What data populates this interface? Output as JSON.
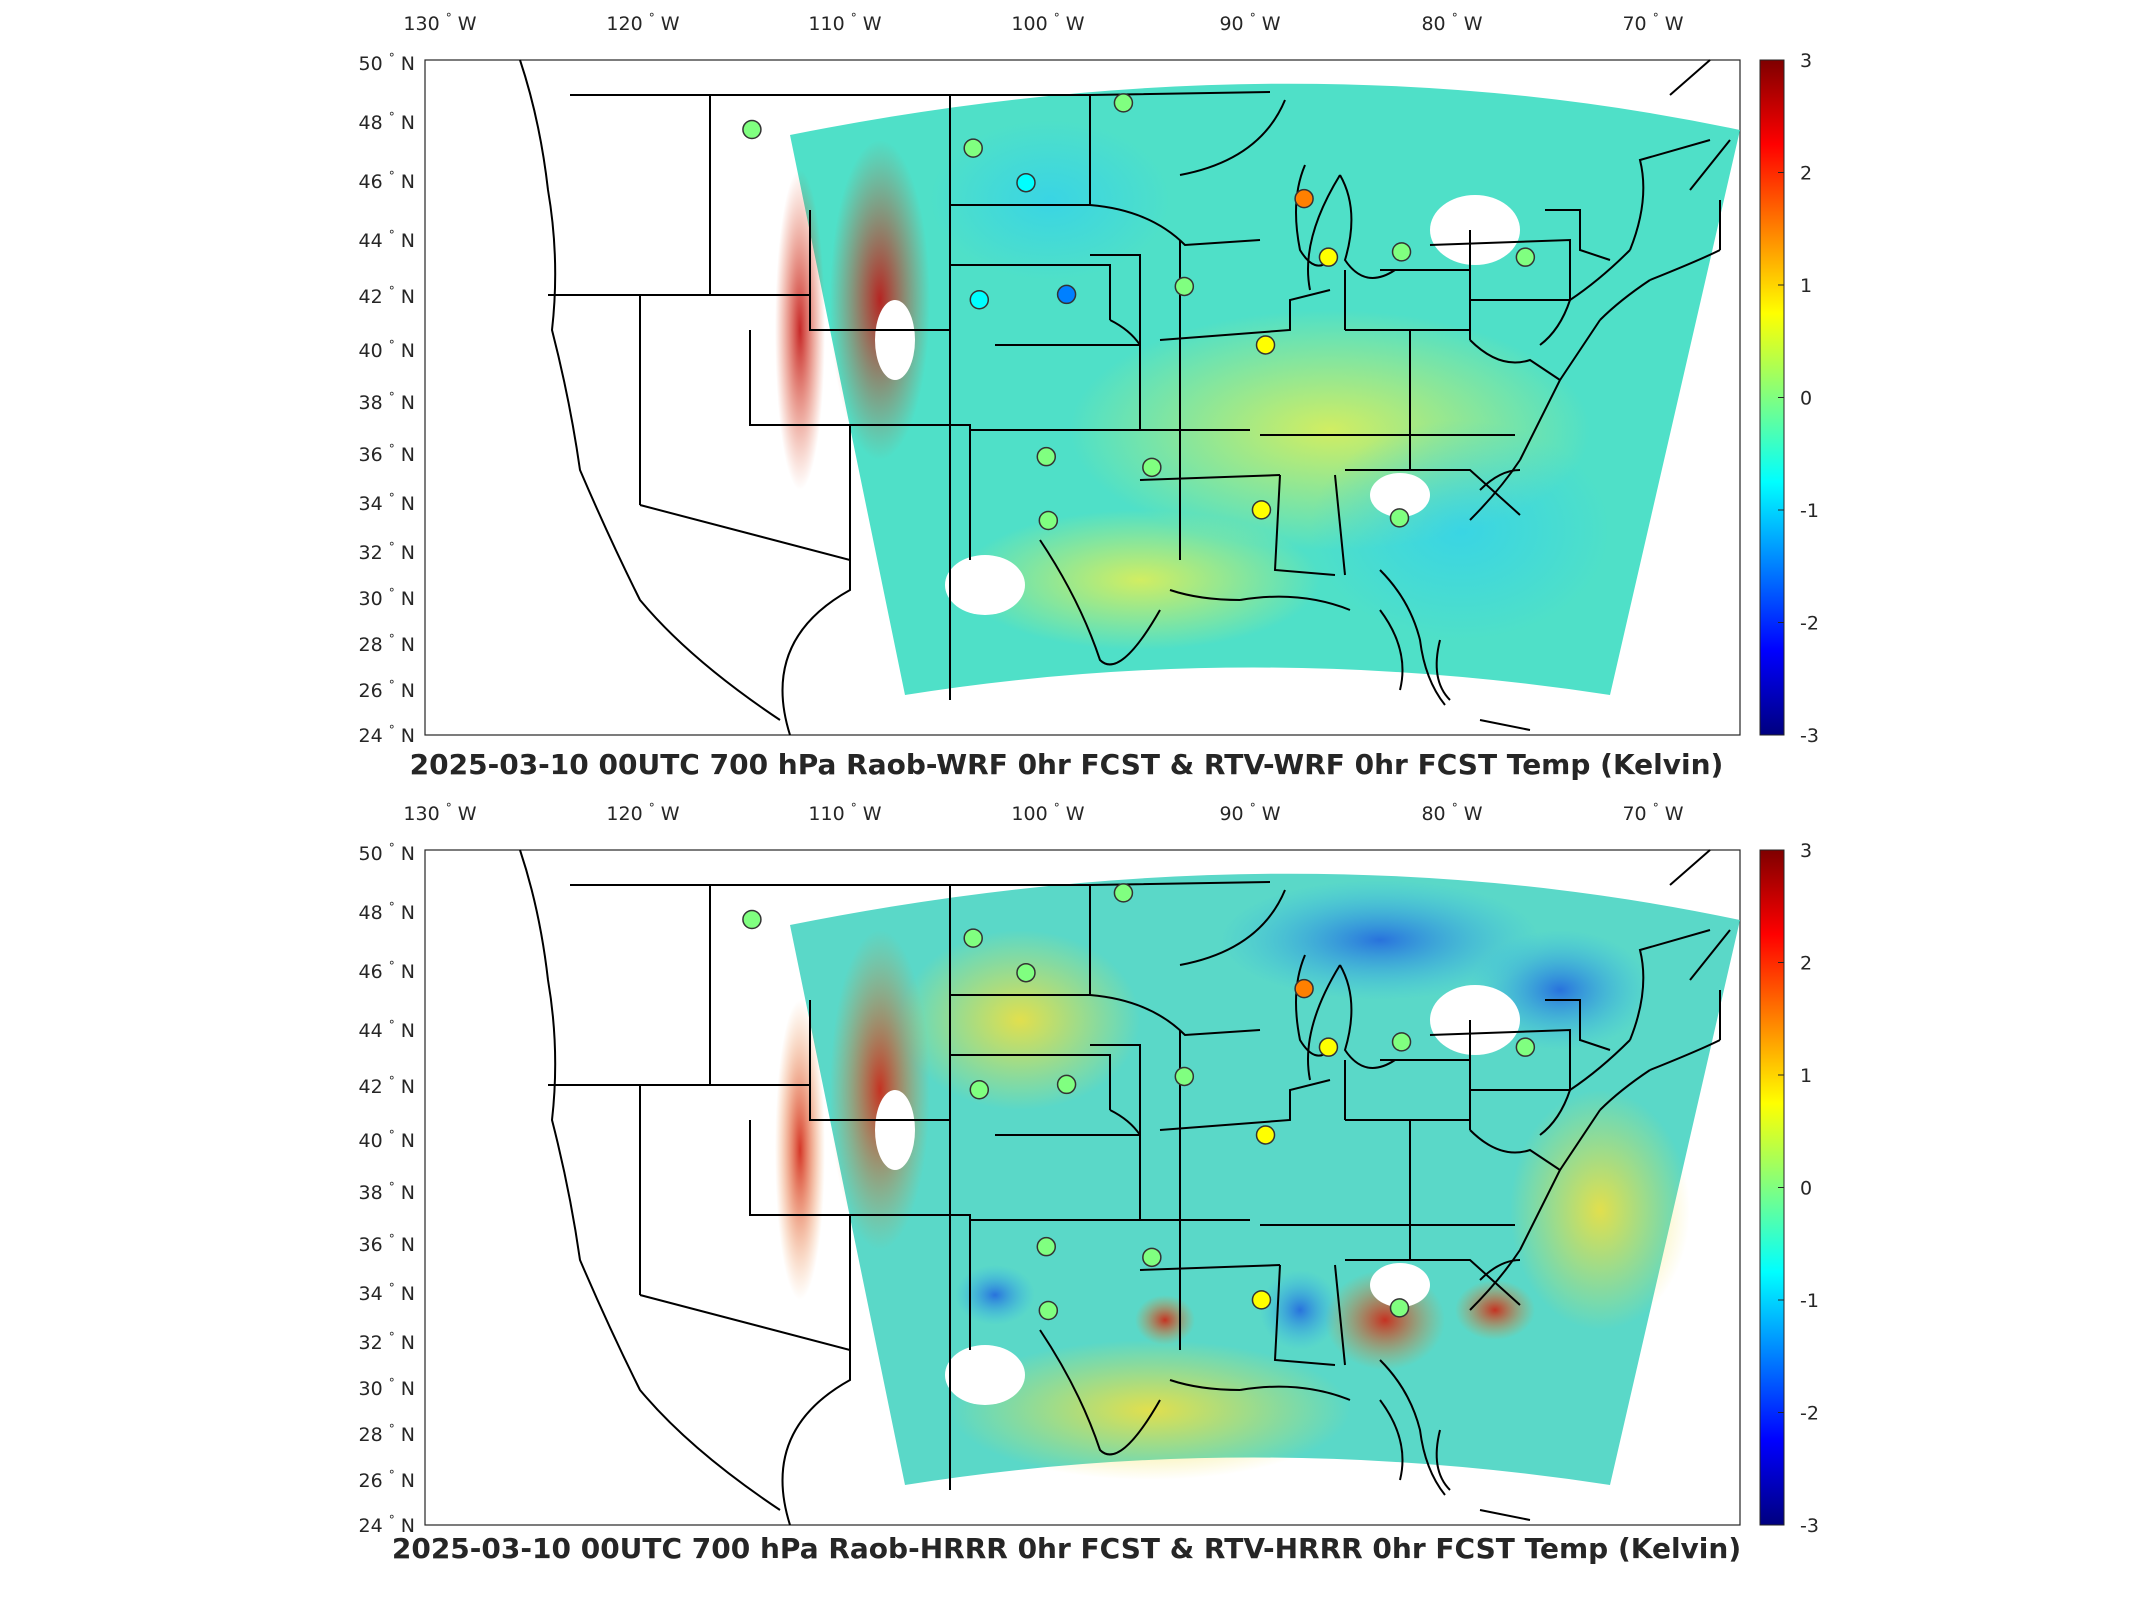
{
  "palette": {
    "land": "#ffffff",
    "border": "#000000",
    "field_base": "#4fe0c8",
    "marker_neutral": "#9ee06a",
    "marker_warm": "#f5a21b",
    "marker_cool": "#40c8f0",
    "marker_coolest": "#2f9af0"
  },
  "axes": {
    "lon_labels": [
      {
        "num": "130",
        "deg": "°",
        "hem": "W"
      },
      {
        "num": "120",
        "deg": "°",
        "hem": "W"
      },
      {
        "num": "110",
        "deg": "°",
        "hem": "W"
      },
      {
        "num": "100",
        "deg": "°",
        "hem": "W"
      },
      {
        "num": "90",
        "deg": "°",
        "hem": "W"
      },
      {
        "num": "80",
        "deg": "°",
        "hem": "W"
      },
      {
        "num": "70",
        "deg": "°",
        "hem": "W"
      }
    ],
    "lat_labels": [
      {
        "num": "50",
        "deg": "°",
        "hem": "N"
      },
      {
        "num": "48",
        "deg": "°",
        "hem": "N"
      },
      {
        "num": "46",
        "deg": "°",
        "hem": "N"
      },
      {
        "num": "44",
        "deg": "°",
        "hem": "N"
      },
      {
        "num": "42",
        "deg": "°",
        "hem": "N"
      },
      {
        "num": "40",
        "deg": "°",
        "hem": "N"
      },
      {
        "num": "38",
        "deg": "°",
        "hem": "N"
      },
      {
        "num": "36",
        "deg": "°",
        "hem": "N"
      },
      {
        "num": "34",
        "deg": "°",
        "hem": "N"
      },
      {
        "num": "32",
        "deg": "°",
        "hem": "N"
      },
      {
        "num": "30",
        "deg": "°",
        "hem": "N"
      },
      {
        "num": "28",
        "deg": "°",
        "hem": "N"
      },
      {
        "num": "26",
        "deg": "°",
        "hem": "N"
      },
      {
        "num": "24",
        "deg": "°",
        "hem": "N"
      }
    ]
  },
  "colorbar": {
    "ticks": [
      "3",
      "2",
      "1",
      "0",
      "-1",
      "-2",
      "-3"
    ],
    "range": [
      -3,
      3
    ],
    "stops": [
      "#00007f",
      "#0000ff",
      "#0080ff",
      "#00ffff",
      "#80ff80",
      "#ffff00",
      "#ff8000",
      "#ff0000",
      "#7f0000"
    ]
  },
  "panels": [
    {
      "title": "2025-03-10 00UTC 700 hPa Raob-WRF 0hr FCST & RTV-WRF 0hr FCST Temp (Kelvin)",
      "raob_markers": [
        {
          "lon": -111.9,
          "lat": 47.5,
          "value": 0.2
        },
        {
          "lon": -101.0,
          "lat": 46.8,
          "value": 0.3
        },
        {
          "lon": -98.4,
          "lat": 45.5,
          "value": -0.9
        },
        {
          "lon": -93.6,
          "lat": 48.5,
          "value": 0.2
        },
        {
          "lon": -100.7,
          "lat": 41.1,
          "value": -1.0
        },
        {
          "lon": -96.4,
          "lat": 41.3,
          "value": -1.3
        },
        {
          "lon": -90.6,
          "lat": 41.6,
          "value": 0.3
        },
        {
          "lon": -84.7,
          "lat": 44.9,
          "value": 1.5
        },
        {
          "lon": -83.5,
          "lat": 42.7,
          "value": 0.5
        },
        {
          "lon": -79.9,
          "lat": 42.9,
          "value": 0.2
        },
        {
          "lon": -73.8,
          "lat": 42.7,
          "value": 0.2
        },
        {
          "lon": -86.6,
          "lat": 39.4,
          "value": 0.4
        },
        {
          "lon": -97.4,
          "lat": 35.2,
          "value": 0.2
        },
        {
          "lon": -92.2,
          "lat": 34.8,
          "value": 0.2
        },
        {
          "lon": -97.3,
          "lat": 32.8,
          "value": 0.3
        },
        {
          "lon": -86.8,
          "lat": 33.2,
          "value": 0.5
        },
        {
          "lon": -80.0,
          "lat": 32.9,
          "value": 0.3
        }
      ]
    },
    {
      "title": "2025-03-10 00UTC 700 hPa Raob-HRRR 0hr FCST & RTV-HRRR 0hr FCST Temp (Kelvin)",
      "raob_markers": [
        {
          "lon": -111.9,
          "lat": 47.5,
          "value": 0.3
        },
        {
          "lon": -101.0,
          "lat": 46.8,
          "value": 0.3
        },
        {
          "lon": -98.4,
          "lat": 45.5,
          "value": 0.2
        },
        {
          "lon": -93.6,
          "lat": 48.5,
          "value": 0.2
        },
        {
          "lon": -100.7,
          "lat": 41.1,
          "value": 0.1
        },
        {
          "lon": -96.4,
          "lat": 41.3,
          "value": 0.1
        },
        {
          "lon": -90.6,
          "lat": 41.6,
          "value": 0.3
        },
        {
          "lon": -84.7,
          "lat": 44.9,
          "value": 1.5
        },
        {
          "lon": -83.5,
          "lat": 42.7,
          "value": 0.5
        },
        {
          "lon": -79.9,
          "lat": 42.9,
          "value": 0.1
        },
        {
          "lon": -73.8,
          "lat": 42.7,
          "value": 0.3
        },
        {
          "lon": -86.6,
          "lat": 39.4,
          "value": 0.5
        },
        {
          "lon": -97.4,
          "lat": 35.2,
          "value": 0.2
        },
        {
          "lon": -92.2,
          "lat": 34.8,
          "value": 0.3
        },
        {
          "lon": -97.3,
          "lat": 32.8,
          "value": 0.3
        },
        {
          "lon": -86.8,
          "lat": 33.2,
          "value": 0.5
        },
        {
          "lon": -80.0,
          "lat": 32.9,
          "value": 0.3
        }
      ]
    }
  ]
}
